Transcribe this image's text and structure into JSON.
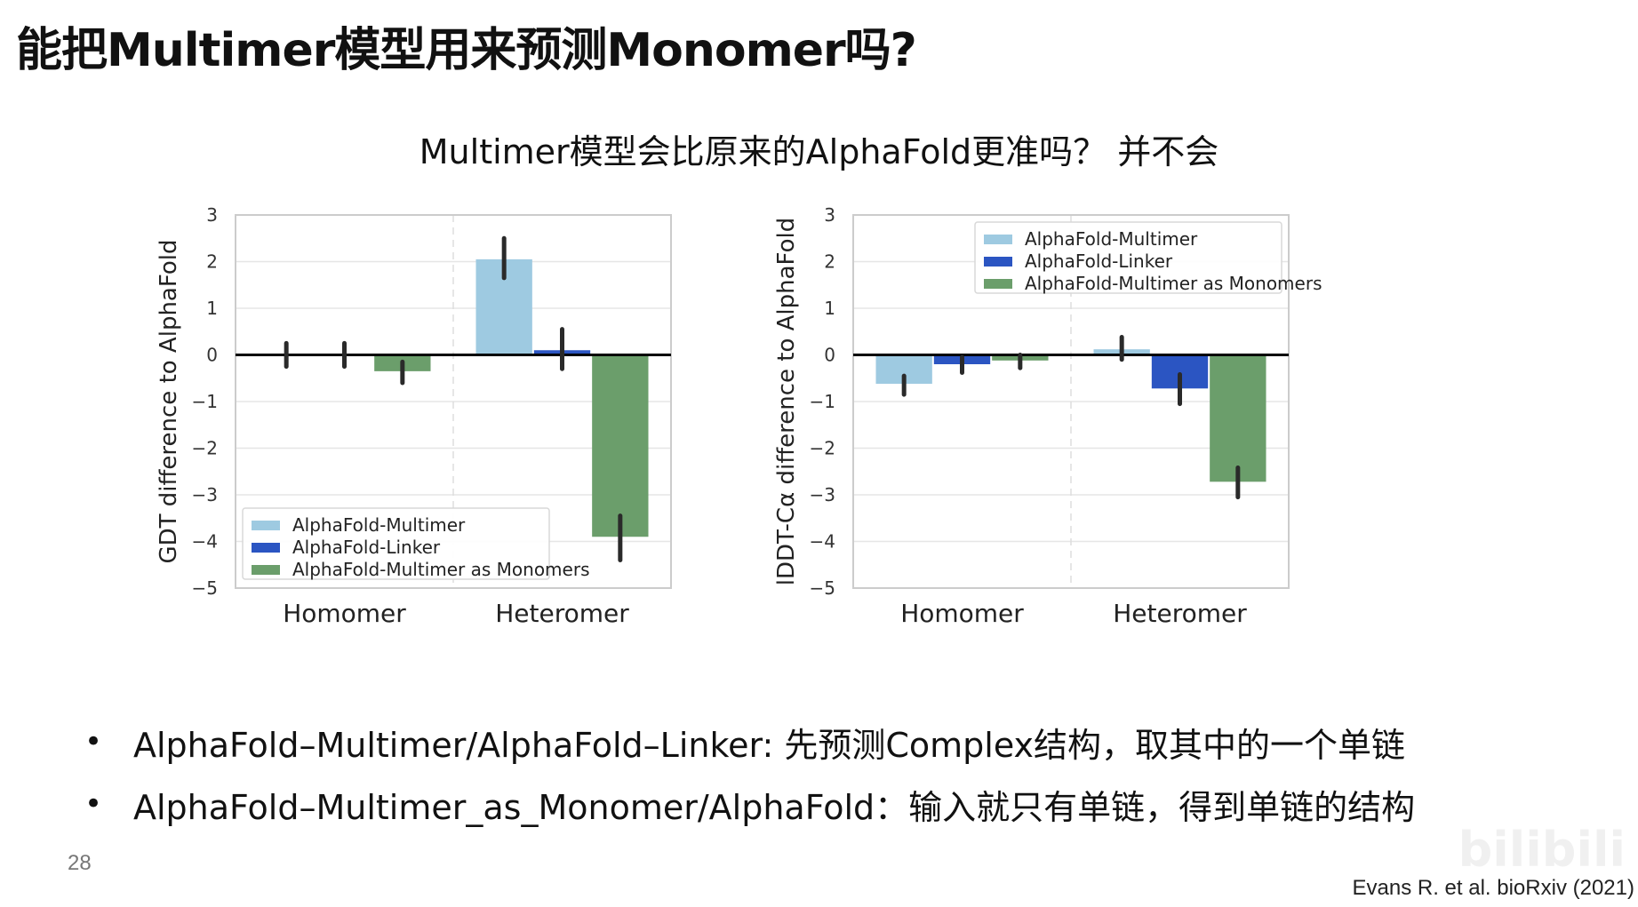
{
  "slide": {
    "title": "能把Multimer模型用来预测Monomer吗?",
    "subtitle": "Multimer模型会比原来的AlphaFold更准吗？ 并不会",
    "bullets": [
      "AlphaFold–Multimer/AlphaFold–Linker: 先预测Complex结构，取其中的一个单链",
      "AlphaFold–Multimer_as_Monomer/AlphaFold：输入就只有单链，得到单链的结构"
    ],
    "bullet_symbol": "•",
    "page_number": "28",
    "citation": "Evans R. et al. bioRxiv (2021)",
    "watermark": "bilibili"
  },
  "colors": {
    "AlphaFold-Multimer": "#9ecae1",
    "AlphaFold-Linker": "#2b55c2",
    "AlphaFold-Multimer as Monomers": "#6b9e6b",
    "error_bar": "#2a2a2a",
    "zero_line": "#000000",
    "grid": "#e6e6e6",
    "frame": "#cccccc"
  },
  "chart_data": [
    {
      "type": "bar",
      "ylabel": "GDT difference to AlphaFold",
      "categories": [
        "Homomer",
        "Heteromer"
      ],
      "ylim": [
        -5,
        3
      ],
      "yticks": [
        3,
        2,
        1,
        0,
        -1,
        -2,
        -3,
        -4,
        -5
      ],
      "ytick_labels": [
        "3",
        "2",
        "1",
        "0",
        "−1",
        "−2",
        "−3",
        "−4",
        "−5"
      ],
      "grid": true,
      "legend_position": "lower-left",
      "series": [
        {
          "name": "AlphaFold-Multimer",
          "values": [
            0.0,
            2.05
          ],
          "err_low": [
            -0.25,
            1.65
          ],
          "err_high": [
            0.25,
            2.5
          ]
        },
        {
          "name": "AlphaFold-Linker",
          "values": [
            0.0,
            0.1
          ],
          "err_low": [
            -0.25,
            -0.3
          ],
          "err_high": [
            0.25,
            0.55
          ]
        },
        {
          "name": "AlphaFold-Multimer as Monomers",
          "values": [
            -0.35,
            -3.9
          ],
          "err_low": [
            -0.6,
            -4.4
          ],
          "err_high": [
            -0.15,
            -3.45
          ]
        }
      ]
    },
    {
      "type": "bar",
      "ylabel": "lDDT-Cα difference to AlphaFold",
      "categories": [
        "Homomer",
        "Heteromer"
      ],
      "ylim": [
        -5,
        3
      ],
      "yticks": [
        3,
        2,
        1,
        0,
        -1,
        -2,
        -3,
        -4,
        -5
      ],
      "ytick_labels": [
        "3",
        "2",
        "1",
        "0",
        "−1",
        "−2",
        "−3",
        "−4",
        "−5"
      ],
      "grid": true,
      "legend_position": "upper-right",
      "series": [
        {
          "name": "AlphaFold-Multimer",
          "values": [
            -0.62,
            0.12
          ],
          "err_low": [
            -0.85,
            -0.1
          ],
          "err_high": [
            -0.45,
            0.38
          ]
        },
        {
          "name": "AlphaFold-Linker",
          "values": [
            -0.2,
            -0.72
          ],
          "err_low": [
            -0.38,
            -1.05
          ],
          "err_high": [
            -0.05,
            -0.42
          ]
        },
        {
          "name": "AlphaFold-Multimer as Monomers",
          "values": [
            -0.12,
            -2.72
          ],
          "err_low": [
            -0.28,
            -3.05
          ],
          "err_high": [
            0.0,
            -2.42
          ]
        }
      ]
    }
  ]
}
